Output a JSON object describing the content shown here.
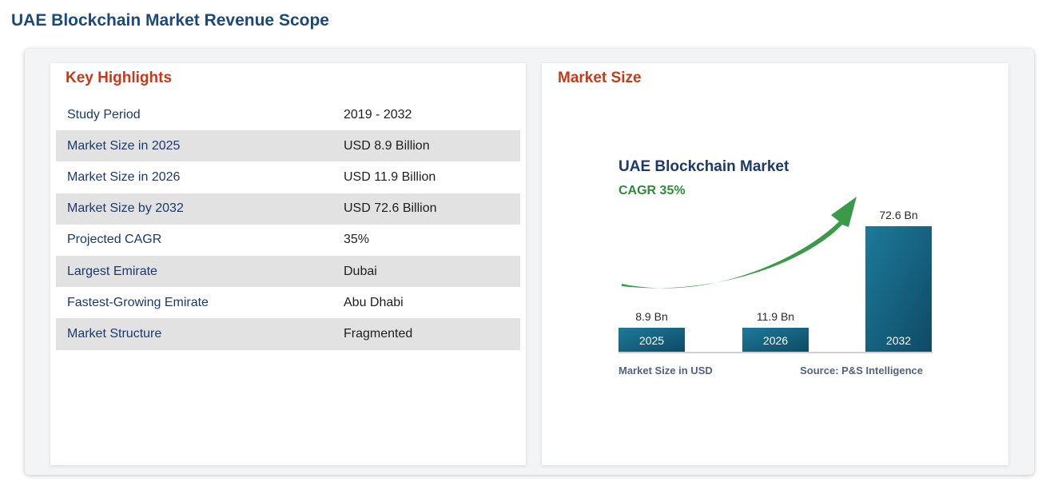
{
  "page": {
    "title": "UAE Blockchain Market Revenue Scope"
  },
  "highlights": {
    "heading": "Key Highlights",
    "rows": [
      {
        "label": "Study Period",
        "value": "2019 - 2032"
      },
      {
        "label": "Market Size in 2025",
        "value": "USD 8.9 Billion"
      },
      {
        "label": "Market Size in 2026",
        "value": "USD 11.9 Billion"
      },
      {
        "label": "Market Size by 2032",
        "value": "USD 72.6 Billion"
      },
      {
        "label": "Projected CAGR",
        "value": "35%"
      },
      {
        "label": "Largest Emirate",
        "value": "Dubai"
      },
      {
        "label": "Fastest-Growing Emirate",
        "value": "Abu Dhabi"
      },
      {
        "label": "Market Structure",
        "value": "Fragmented"
      }
    ]
  },
  "market": {
    "heading": "Market Size"
  },
  "chart_data": {
    "type": "bar",
    "title": "UAE Blockchain Market",
    "subtitle": "CAGR 35%",
    "categories": [
      "2025",
      "2026",
      "2032"
    ],
    "values": [
      8.9,
      11.9,
      72.6
    ],
    "value_labels": [
      "8.9 Bn",
      "11.9 Bn",
      "72.6 Bn"
    ],
    "xlabel": "Market Size in USD",
    "source": "Source: P&S Intelligence",
    "colors": {
      "bar_light": "#1d7a9a",
      "bar_dark": "#0e4a66",
      "arrow": "#3a9a4a",
      "baseline": "#cfd3d8"
    }
  }
}
